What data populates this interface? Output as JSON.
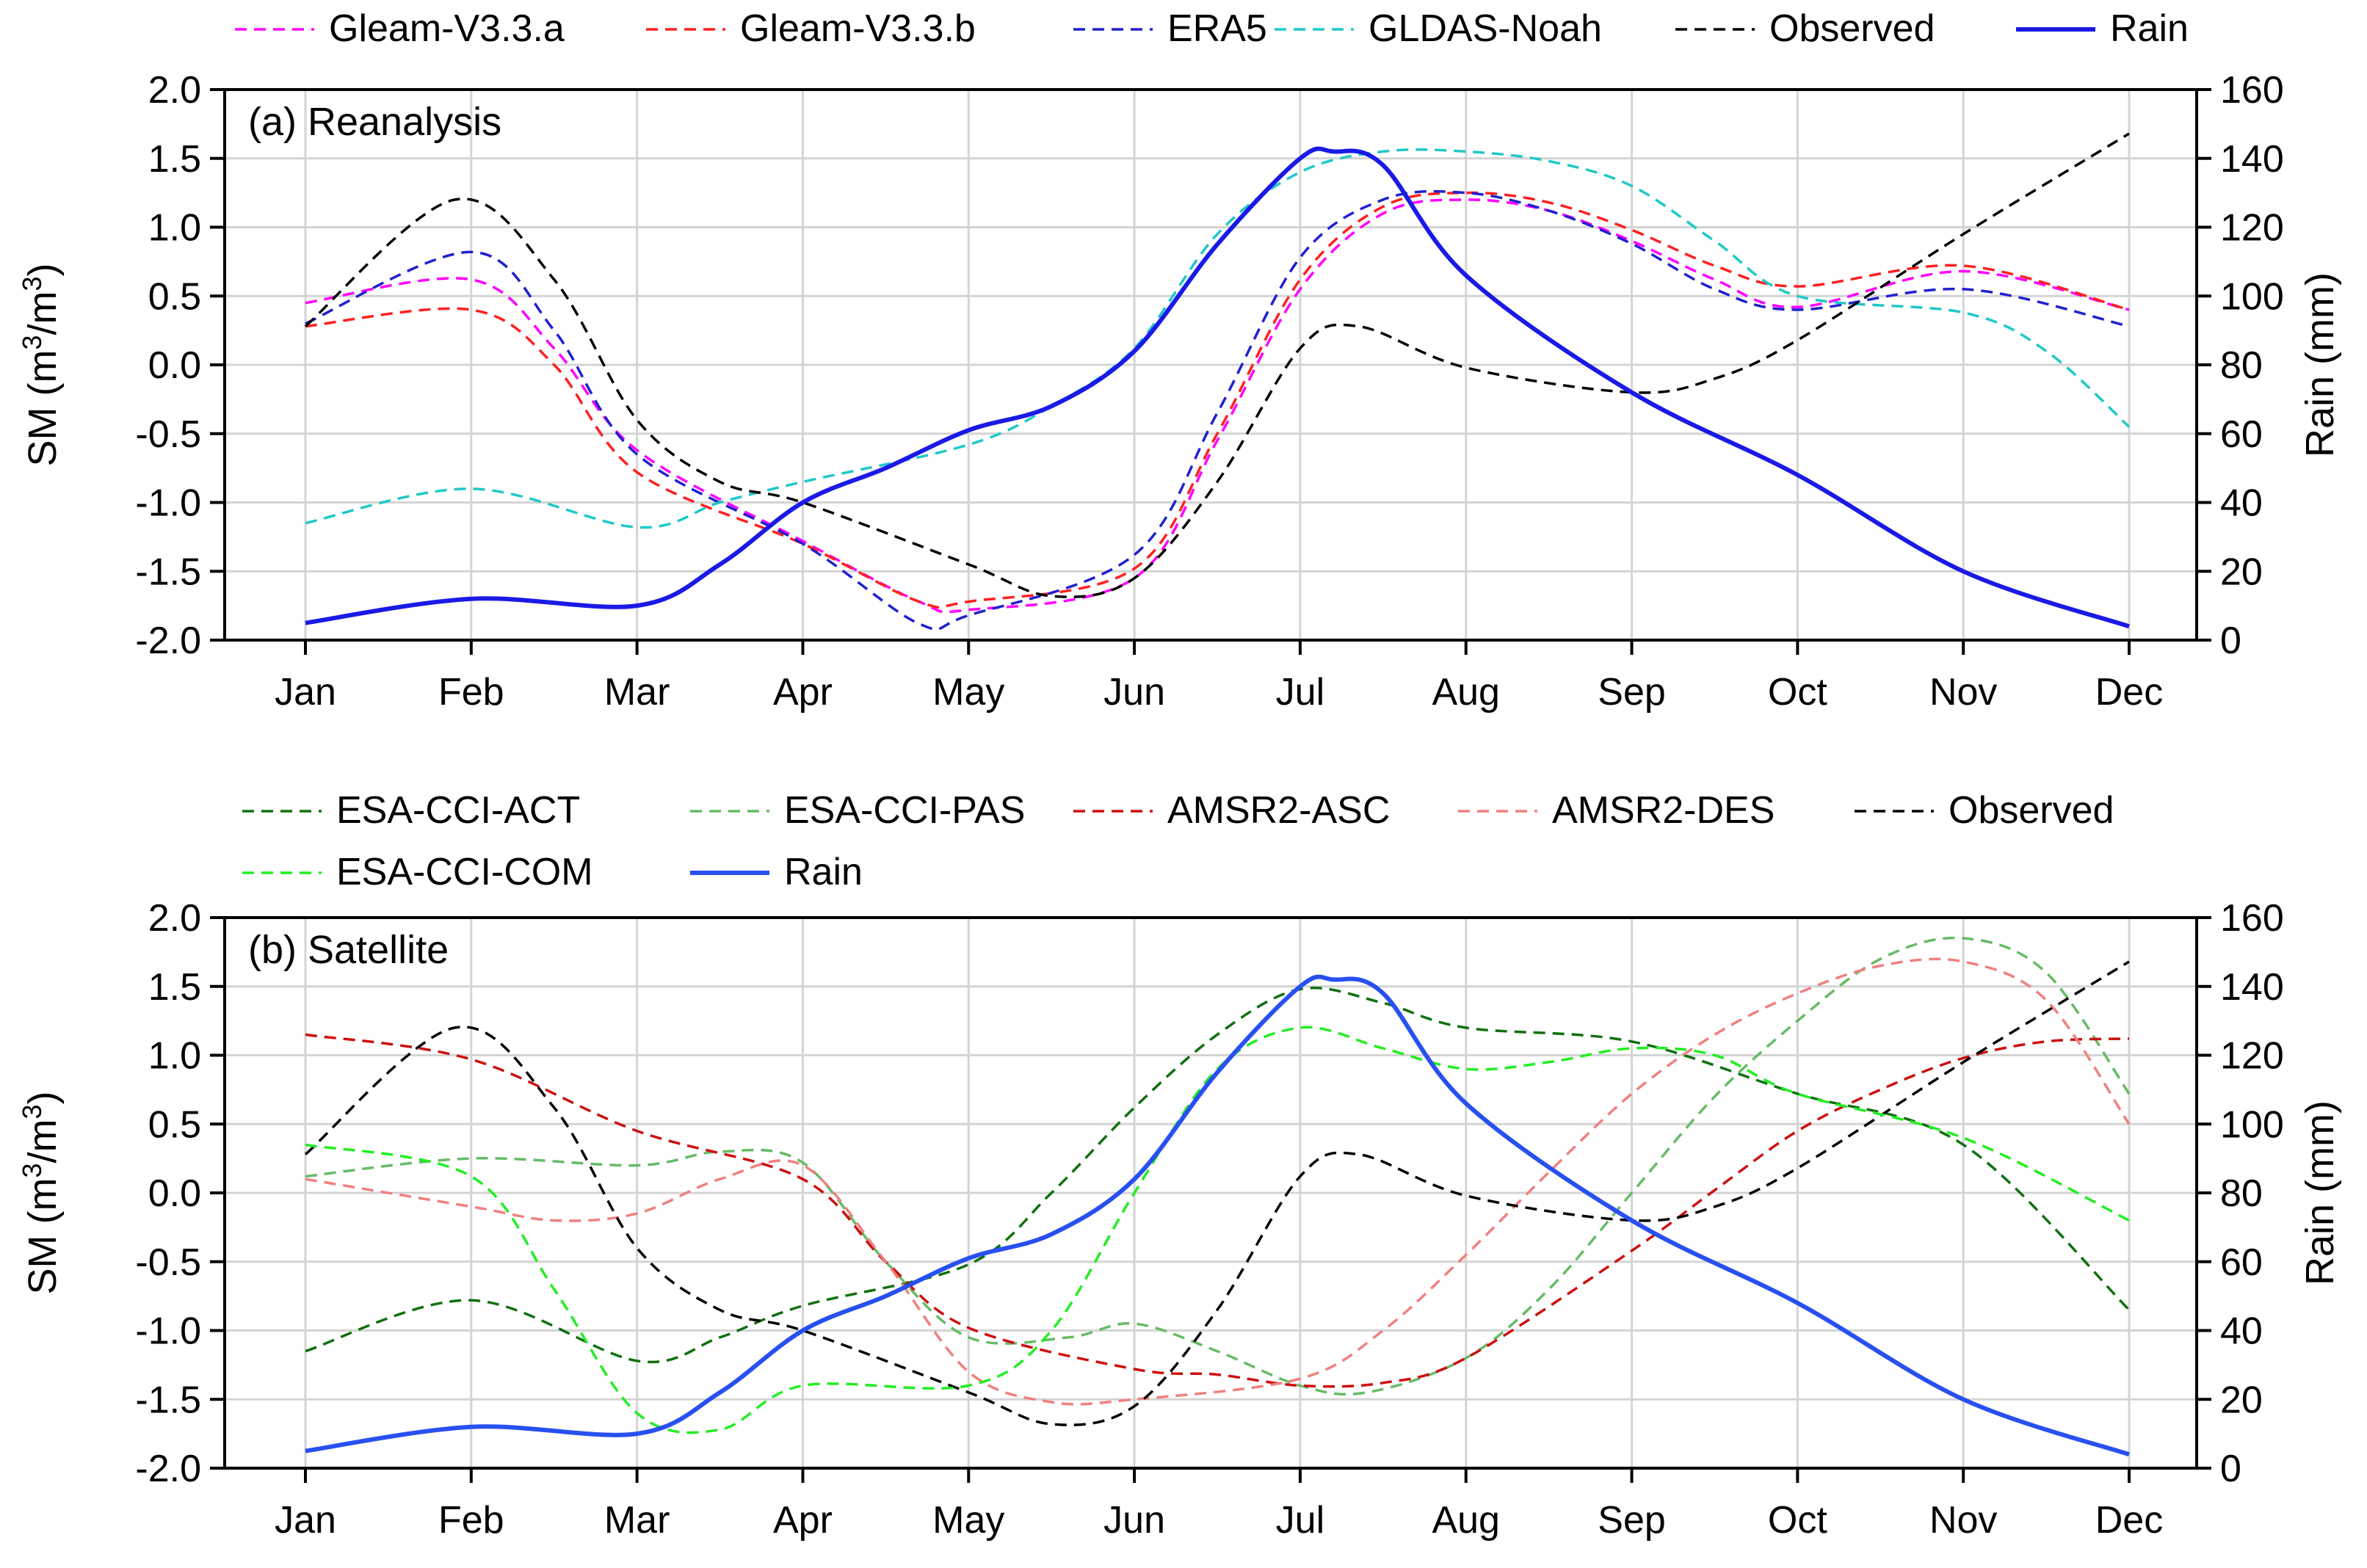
{
  "chart_data": [
    {
      "type": "line",
      "title": "(a) Reanalysis",
      "xlabel": "",
      "ylabel": "SM (m³/m³)",
      "ylabel_parts": {
        "main": "SM (m",
        "sup1": "3",
        "mid": "/m",
        "sup2": "3",
        "end": ")"
      },
      "y2label": "Rain (mm)",
      "categories": [
        "Jan",
        "Feb",
        "Mar",
        "Apr",
        "May",
        "Jun",
        "Jul",
        "Aug",
        "Sep",
        "Oct",
        "Nov",
        "Dec"
      ],
      "ylim": [
        -2.0,
        2.0
      ],
      "y2lim": [
        0,
        160
      ],
      "yticks": [
        "2.0",
        "1.5",
        "1.0",
        "0.5",
        "0.0",
        "-0.5",
        "-1.0",
        "-1.5",
        "-2.0"
      ],
      "y2ticks": [
        "160",
        "140",
        "120",
        "100",
        "80",
        "60",
        "40",
        "20",
        "0"
      ],
      "grid": true,
      "legend": "top",
      "series": [
        {
          "name": "Gleam-V3.3.a",
          "color": "#ff00ff",
          "style": "dashed",
          "axis": "left",
          "x": [
            0,
            1,
            1.5,
            2,
            3,
            3.7,
            4,
            5,
            5.5,
            6,
            6.5,
            7,
            7.5,
            8,
            8.5,
            9,
            10,
            11
          ],
          "values": [
            0.45,
            0.62,
            0.12,
            -0.62,
            -1.28,
            -1.72,
            -1.78,
            -1.55,
            -0.55,
            0.55,
            1.1,
            1.2,
            1.12,
            0.9,
            0.62,
            0.42,
            0.68,
            0.4
          ]
        },
        {
          "name": "Gleam-V3.3.b",
          "color": "#ff2020",
          "style": "dashed",
          "axis": "left",
          "x": [
            0,
            1,
            1.5,
            2,
            3,
            3.7,
            4,
            5,
            5.5,
            6,
            6.5,
            7,
            7.5,
            8,
            8.5,
            9,
            10,
            11
          ],
          "values": [
            0.28,
            0.4,
            0.0,
            -0.78,
            -1.3,
            -1.72,
            -1.72,
            -1.48,
            -0.5,
            0.62,
            1.15,
            1.25,
            1.18,
            0.98,
            0.72,
            0.57,
            0.72,
            0.4
          ]
        },
        {
          "name": "ERA5",
          "color": "#2020d0",
          "style": "dashed",
          "axis": "left",
          "x": [
            0,
            1,
            1.5,
            2,
            3,
            3.7,
            4,
            5,
            5.5,
            6,
            6.5,
            7,
            7.5,
            8,
            8.5,
            9,
            10,
            11
          ],
          "values": [
            0.3,
            0.82,
            0.25,
            -0.65,
            -1.3,
            -1.88,
            -1.82,
            -1.38,
            -0.35,
            0.78,
            1.2,
            1.25,
            1.12,
            0.88,
            0.55,
            0.4,
            0.55,
            0.28
          ]
        },
        {
          "name": "GLDAS-Noah",
          "color": "#20c8c8",
          "style": "dashed",
          "axis": "left",
          "x": [
            0,
            1,
            2,
            2.5,
            3,
            4,
            4.5,
            5,
            5.5,
            6,
            6.5,
            7,
            7.5,
            8,
            8.5,
            9,
            10,
            10.5,
            11
          ],
          "values": [
            -1.15,
            -0.9,
            -1.18,
            -1.0,
            -0.85,
            -0.58,
            -0.3,
            0.12,
            0.95,
            1.4,
            1.55,
            1.55,
            1.48,
            1.3,
            0.9,
            0.5,
            0.38,
            0.1,
            -0.45
          ]
        },
        {
          "name": "Observed",
          "color": "#000000",
          "style": "dashed",
          "axis": "left",
          "x": [
            0,
            0.9,
            1.5,
            2,
            2.5,
            3,
            4,
            4.5,
            5,
            5.5,
            6,
            6.35,
            7,
            8,
            8.5,
            9,
            10,
            11
          ],
          "values": [
            0.28,
            1.2,
            0.62,
            -0.4,
            -0.85,
            -1.0,
            -1.45,
            -1.68,
            -1.55,
            -0.85,
            0.12,
            0.28,
            -0.02,
            -0.2,
            -0.1,
            0.18,
            0.95,
            1.68
          ]
        },
        {
          "name": "Rain",
          "color": "#1a1ae6",
          "style": "solid",
          "axis": "right",
          "x": [
            0,
            1,
            2,
            2.5,
            3,
            3.5,
            4,
            4.5,
            5,
            5.5,
            6,
            6.2,
            6.5,
            7,
            8,
            9,
            10,
            11
          ],
          "values": [
            5,
            12,
            10,
            22,
            40,
            50,
            61,
            68,
            84,
            115,
            140,
            142,
            138,
            106,
            72,
            48,
            20,
            4
          ]
        }
      ]
    },
    {
      "type": "line",
      "title": "(b) Satellite",
      "xlabel": "",
      "ylabel": "SM (m³/m³)",
      "ylabel_parts": {
        "main": "SM (m",
        "sup1": "3",
        "mid": "/m",
        "sup2": "3",
        "end": ")"
      },
      "y2label": "Rain (mm)",
      "categories": [
        "Jan",
        "Feb",
        "Mar",
        "Apr",
        "May",
        "Jun",
        "Jul",
        "Aug",
        "Sep",
        "Oct",
        "Nov",
        "Dec"
      ],
      "ylim": [
        -2.0,
        2.0
      ],
      "y2lim": [
        0,
        160
      ],
      "yticks": [
        "2.0",
        "1.5",
        "1.0",
        "0.5",
        "0.0",
        "-0.5",
        "-1.0",
        "-1.5",
        "-2.0"
      ],
      "y2ticks": [
        "160",
        "140",
        "120",
        "100",
        "80",
        "60",
        "40",
        "20",
        "0"
      ],
      "grid": true,
      "legend": "top",
      "series": [
        {
          "name": "ESA-CCI-ACT",
          "color": "#107010",
          "style": "dashed",
          "axis": "left",
          "x": [
            0,
            1,
            2,
            2.5,
            3,
            4,
            4.5,
            5,
            5.5,
            6,
            6.5,
            7,
            8,
            9,
            10,
            11
          ],
          "values": [
            -1.15,
            -0.78,
            -1.22,
            -1.05,
            -0.82,
            -0.52,
            0.0,
            0.62,
            1.15,
            1.48,
            1.38,
            1.2,
            1.1,
            0.72,
            0.35,
            -0.85
          ]
        },
        {
          "name": "ESA-CCI-PAS",
          "color": "#66bb66",
          "style": "dashed",
          "axis": "left",
          "x": [
            0,
            1,
            2,
            2.5,
            3,
            3.5,
            4,
            4.6,
            5,
            5.5,
            6,
            6.4,
            7,
            7.5,
            8,
            8.5,
            9,
            9.5,
            10,
            10.5,
            11
          ],
          "values": [
            0.12,
            0.25,
            0.2,
            0.3,
            0.22,
            -0.5,
            -1.05,
            -1.05,
            -0.95,
            -1.15,
            -1.4,
            -1.45,
            -1.2,
            -0.7,
            0.0,
            0.7,
            1.25,
            1.7,
            1.85,
            1.6,
            0.72
          ]
        },
        {
          "name": "AMSR2-ASC",
          "color": "#cc1010",
          "style": "dashed",
          "axis": "left",
          "x": [
            0,
            1,
            2,
            3,
            3.5,
            4,
            5,
            5.5,
            6,
            6.5,
            7,
            8,
            8.5,
            9,
            9.5,
            10,
            10.5,
            11
          ],
          "values": [
            1.15,
            0.97,
            0.45,
            0.1,
            -0.5,
            -0.98,
            -1.28,
            -1.32,
            -1.4,
            -1.38,
            -1.2,
            -0.42,
            0.02,
            0.45,
            0.75,
            0.98,
            1.1,
            1.12
          ]
        },
        {
          "name": "AMSR2-DES",
          "color": "#f08080",
          "style": "dashed",
          "axis": "left",
          "x": [
            0,
            1,
            1.5,
            2,
            2.5,
            3,
            3.5,
            4,
            4.5,
            5,
            6,
            6.5,
            7,
            7.5,
            8,
            8.5,
            9,
            9.5,
            10,
            10.5,
            11
          ],
          "values": [
            0.1,
            -0.1,
            -0.2,
            -0.15,
            0.1,
            0.2,
            -0.5,
            -1.3,
            -1.52,
            -1.5,
            -1.35,
            -1.0,
            -0.45,
            0.15,
            0.72,
            1.15,
            1.45,
            1.65,
            1.68,
            1.4,
            0.5
          ]
        },
        {
          "name": "Observed",
          "color": "#000000",
          "style": "dashed",
          "axis": "left",
          "x": [
            0,
            0.9,
            1.5,
            2,
            2.5,
            3,
            4,
            4.5,
            5,
            5.5,
            6,
            6.35,
            7,
            8,
            8.5,
            9,
            10,
            11
          ],
          "values": [
            0.28,
            1.2,
            0.62,
            -0.4,
            -0.85,
            -1.0,
            -1.45,
            -1.68,
            -1.55,
            -0.85,
            0.12,
            0.28,
            -0.02,
            -0.2,
            -0.1,
            0.18,
            0.95,
            1.68
          ]
        },
        {
          "name": "ESA-CCI-COM",
          "color": "#22ee22",
          "style": "dashed",
          "axis": "left",
          "x": [
            0,
            1,
            1.5,
            2,
            2.5,
            3,
            4,
            4.5,
            5,
            5.5,
            6,
            6.5,
            7,
            7.5,
            8,
            8.5,
            9,
            10,
            11
          ],
          "values": [
            0.35,
            0.12,
            -0.7,
            -1.6,
            -1.72,
            -1.4,
            -1.4,
            -1.0,
            0.0,
            0.9,
            1.2,
            1.05,
            0.9,
            0.95,
            1.05,
            1.0,
            0.72,
            0.4,
            -0.2
          ]
        },
        {
          "name": "Rain",
          "color": "#2850f0",
          "style": "solid",
          "axis": "right",
          "x": [
            0,
            1,
            2,
            2.5,
            3,
            3.5,
            4,
            4.5,
            5,
            5.5,
            6,
            6.2,
            6.5,
            7,
            8,
            9,
            10,
            11
          ],
          "values": [
            5,
            12,
            10,
            22,
            40,
            50,
            61,
            68,
            84,
            115,
            140,
            142,
            138,
            106,
            72,
            48,
            20,
            4
          ]
        }
      ]
    }
  ]
}
